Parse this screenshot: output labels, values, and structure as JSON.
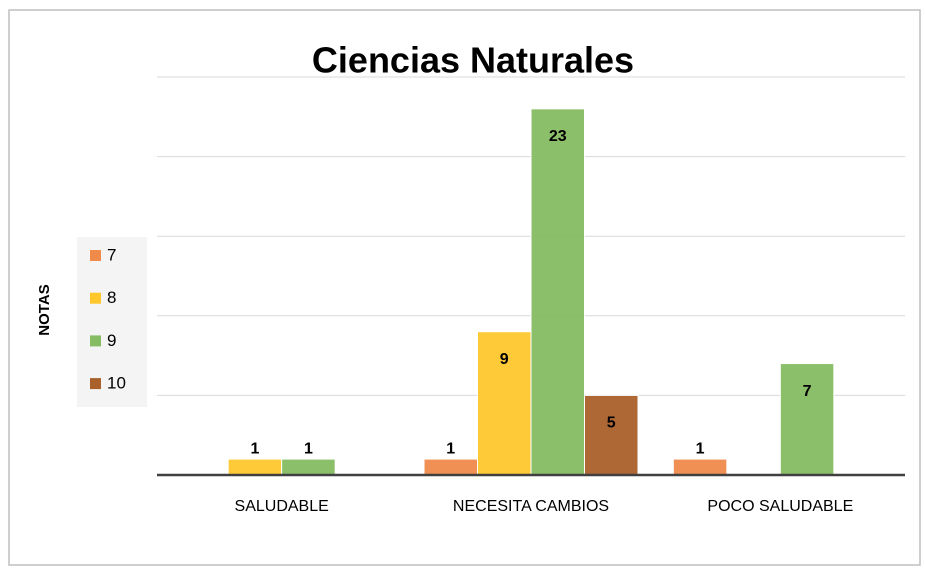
{
  "chart_data": {
    "type": "bar",
    "title": "Ciencias Naturales",
    "y_label": "NOTAS",
    "categories": [
      "SALUDABLE",
      "NECESITA CAMBIOS",
      "POCO SALUDABLE"
    ],
    "series": [
      {
        "name": "7",
        "color": "#F08A4B",
        "values": [
          null,
          1,
          1
        ]
      },
      {
        "name": "8",
        "color": "#FFC72C",
        "values": [
          1,
          9,
          null
        ]
      },
      {
        "name": "9",
        "color": "#86BC62",
        "values": [
          1,
          23,
          7
        ]
      },
      {
        "name": "10",
        "color": "#A9602B",
        "values": [
          null,
          5,
          null
        ]
      }
    ],
    "ylim": [
      0,
      25
    ],
    "yticks": [
      0,
      5,
      10,
      15,
      20,
      25
    ],
    "grid": true,
    "legend": "left"
  }
}
